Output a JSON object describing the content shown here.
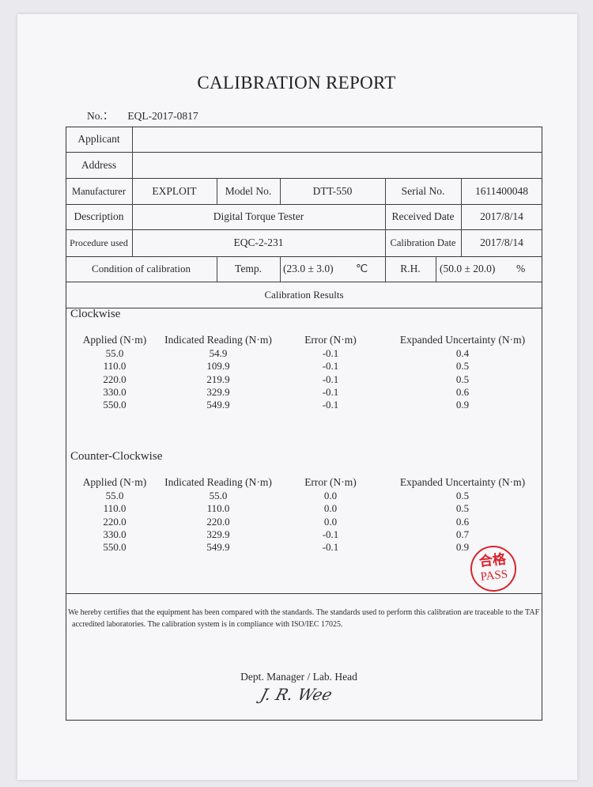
{
  "title": "CALIBRATION REPORT",
  "report_no": {
    "label": "No.：",
    "value": "EQL-2017-0817"
  },
  "info": {
    "applicant_label": "Applicant",
    "applicant_value": "",
    "address_label": "Address",
    "address_value": "",
    "manufacturer_label": "Manufacturer",
    "manufacturer_value": "EXPLOIT",
    "model_label": "Model No.",
    "model_value": "DTT-550",
    "serial_label": "Serial No.",
    "serial_value": "1611400048",
    "description_label": "Description",
    "description_value": "Digital Torque Tester",
    "received_label": "Received Date",
    "received_value": "2017/8/14",
    "procedure_label": "Procedure used",
    "procedure_value": "EQC-2-231",
    "calibration_date_label": "Calibration Date",
    "calibration_date_value": "2017/8/14",
    "condition_label": "Condition of calibration",
    "temp_label": "Temp.",
    "temp_value": "(23.0 ± 3.0)",
    "temp_unit": "℃",
    "rh_label": "R.H.",
    "rh_value": "(50.0 ± 20.0)",
    "rh_unit": "%"
  },
  "results_heading": "Calibration Results",
  "columns": [
    "Applied (N·m)",
    "Indicated Reading (N·m)",
    "Error (N·m)",
    "Expanded Uncertainty (N·m)"
  ],
  "clockwise": {
    "heading": "Clockwise",
    "rows": [
      [
        "55.0",
        "54.9",
        "-0.1",
        "0.4"
      ],
      [
        "110.0",
        "109.9",
        "-0.1",
        "0.5"
      ],
      [
        "220.0",
        "219.9",
        "-0.1",
        "0.5"
      ],
      [
        "330.0",
        "329.9",
        "-0.1",
        "0.6"
      ],
      [
        "550.0",
        "549.9",
        "-0.1",
        "0.9"
      ]
    ]
  },
  "counter_clockwise": {
    "heading": "Counter-Clockwise",
    "rows": [
      [
        "55.0",
        "55.0",
        "0.0",
        "0.5"
      ],
      [
        "110.0",
        "110.0",
        "0.0",
        "0.5"
      ],
      [
        "220.0",
        "220.0",
        "0.0",
        "0.6"
      ],
      [
        "330.0",
        "329.9",
        "-0.1",
        "0.7"
      ],
      [
        "550.0",
        "549.9",
        "-0.1",
        "0.9"
      ]
    ]
  },
  "stamp": {
    "chinese": "合格",
    "english": "PASS",
    "color": "#d9232a"
  },
  "certification": {
    "line1": "We hereby certifies that the equipment has been compared with the standards. The standards used to perform this calibration are traceable to the TAF",
    "line2": "accredited laboratories. The calibration system is in compliance with ISO/IEC 17025."
  },
  "signoff": {
    "title": "Dept. Manager / Lab. Head",
    "signature": "J. R. Wee"
  }
}
